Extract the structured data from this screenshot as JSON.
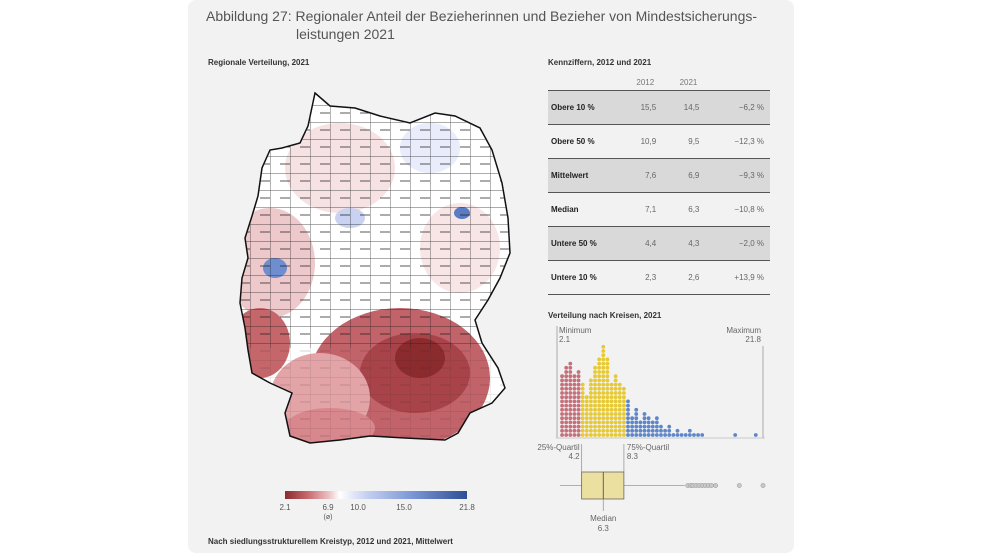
{
  "header": {
    "title_line1": "Abbildung 27: Regionaler Anteil der Bezieherinnen und Bezieher von Mindestsicherungs-",
    "title_line2": "leistungen 2021"
  },
  "map": {
    "section_title": "Regionale Verteilung, 2021",
    "legend": {
      "min": "2.1",
      "mean": "6.9",
      "mean_note": "(ø)",
      "t1": "10.0",
      "t2": "15.0",
      "max": "21.8",
      "colors": [
        "#8b2b2e",
        "#c5666b",
        "#ecc0c2",
        "#ffffff",
        "#c6cff0",
        "#7b96d6",
        "#2e4f94"
      ]
    }
  },
  "table": {
    "section_title": "Kennziffern, 2012 und 2021",
    "col_2012": "2012",
    "col_2021": "2021",
    "rows": [
      {
        "label": "Obere 10 %",
        "v2012": "15,5",
        "v2021": "14,5",
        "change": "−6,2 %"
      },
      {
        "label": "Obere 50 %",
        "v2012": "10,9",
        "v2021": "9,5",
        "change": "−12,3 %"
      },
      {
        "label": "Mittelwert",
        "v2012": "7,6",
        "v2021": "6,9",
        "change": "−9,3 %"
      },
      {
        "label": "Median",
        "v2012": "7,1",
        "v2021": "6,3",
        "change": "−10,8 %"
      },
      {
        "label": "Untere 50 %",
        "v2012": "4,4",
        "v2021": "4,3",
        "change": "−2,0 %"
      },
      {
        "label": "Untere 10 %",
        "v2012": "2,3",
        "v2021": "2,6",
        "change": "+13,9 %"
      }
    ]
  },
  "footer": {
    "section_title": "Nach siedlungsstrukturellem Kreistyp, 2012 und 2021, Mittelwert"
  },
  "chart_data": {
    "type": "dot histogram with box plot",
    "title": "Verteilung nach Kreisen, 2021",
    "labels": {
      "minimum": "Minimum",
      "minimum_value": "2.1",
      "maximum": "Maximum",
      "maximum_value": "21.8",
      "q1": "25%-Quartil",
      "q1_value": "4.2",
      "q3": "75%-Quartil",
      "q3_value": "8.3",
      "median": "Median",
      "median_value": "6.3"
    },
    "min": 2.1,
    "q1": 4.2,
    "median": 6.3,
    "q3": 8.3,
    "max": 21.8,
    "bin_width": 0.4,
    "bins_start": 2.1,
    "counts": [
      15,
      17,
      18,
      15,
      16,
      13,
      10,
      14,
      17,
      19,
      22,
      19,
      13,
      15,
      13,
      12,
      9,
      5,
      7,
      4,
      6,
      5,
      4,
      5,
      3,
      2,
      3,
      1,
      2,
      1,
      1,
      2,
      1,
      1,
      1,
      0,
      0,
      0,
      0,
      0,
      0,
      0,
      1,
      0,
      0,
      0,
      0,
      1,
      0,
      0
    ],
    "outliers": [
      14.5,
      14.8,
      15.0,
      15.3,
      15.6,
      15.9,
      16.2,
      16.5,
      16.8,
      17.2,
      19.5,
      21.8
    ],
    "colors": {
      "low": "#c5707a",
      "mid": "#e6c933",
      "high": "#5f86c8",
      "box": "#ece0a0"
    }
  }
}
